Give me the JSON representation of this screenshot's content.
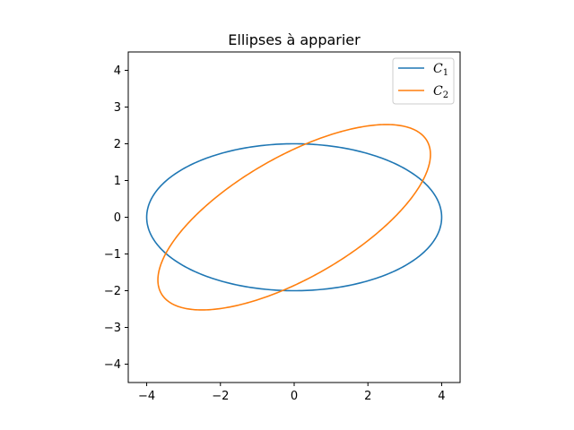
{
  "chart_data": {
    "type": "line",
    "title": "Ellipses à apparier",
    "xlabel": "",
    "ylabel": "",
    "xlim": [
      -4.5,
      4.5
    ],
    "ylim": [
      -4.5,
      4.5
    ],
    "xticks": [
      -4,
      -2,
      0,
      2,
      4
    ],
    "yticks": [
      -4,
      -3,
      -2,
      -1,
      0,
      1,
      2,
      3,
      4
    ],
    "xtick_labels": [
      "−4",
      "−2",
      "0",
      "2",
      "4"
    ],
    "ytick_labels": [
      "−4",
      "−3",
      "−2",
      "−1",
      "0",
      "1",
      "2",
      "3",
      "4"
    ],
    "grid": false,
    "legend_position": "top-right",
    "series": [
      {
        "name": "C",
        "subscript": "1",
        "color": "#1f77b4",
        "shape": "ellipse",
        "center": [
          0,
          0
        ],
        "semi_axes": [
          4,
          2
        ],
        "rotation_deg": 0
      },
      {
        "name": "C",
        "subscript": "2",
        "color": "#ff7f0e",
        "shape": "ellipse",
        "center": [
          0,
          0
        ],
        "semi_axes": [
          4.16,
          1.65
        ],
        "rotation_deg": 30
      }
    ]
  }
}
